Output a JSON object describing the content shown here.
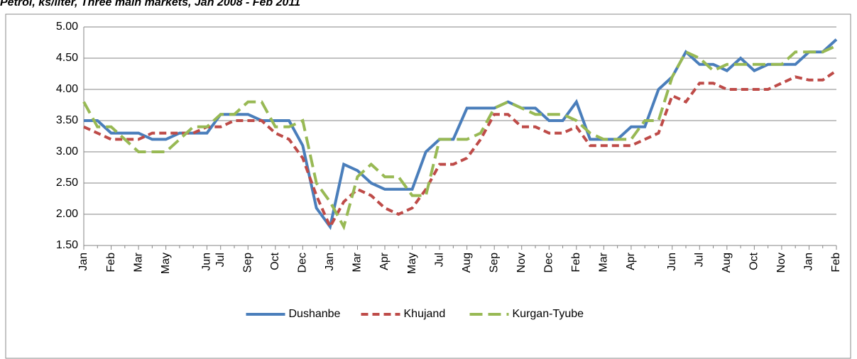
{
  "chart_data": {
    "type": "line",
    "title": "Petrol, ks/liter, Three main markets, Jan 2008 - Feb 2011",
    "categories": [
      "Jan",
      null,
      "Feb",
      null,
      "Mar",
      null,
      "May",
      null,
      null,
      "Jun",
      "Jul",
      null,
      "Sep",
      null,
      "Oct",
      null,
      "Dec",
      null,
      "Jan",
      null,
      "Mar",
      null,
      "Apr",
      null,
      "May",
      null,
      "Jul",
      null,
      "Aug",
      null,
      "Sep",
      null,
      "Nov",
      null,
      "Dec",
      null,
      "Feb",
      null,
      "Mar",
      null,
      "Apr",
      null,
      null,
      "Jun",
      null,
      "Jul",
      null,
      "Aug",
      null,
      "Oct",
      null,
      "Nov",
      null,
      "Jan",
      null,
      "Feb"
    ],
    "series": [
      {
        "name": "Dushanbe",
        "color": "#4a7ebb",
        "line_style": "solid",
        "values": [
          3.5,
          3.5,
          3.3,
          3.3,
          3.3,
          3.2,
          3.2,
          3.3,
          3.3,
          3.3,
          3.6,
          3.6,
          3.6,
          3.5,
          3.5,
          3.5,
          3.1,
          2.1,
          1.8,
          2.8,
          2.7,
          2.5,
          2.4,
          2.4,
          2.4,
          3.0,
          3.2,
          3.2,
          3.7,
          3.7,
          3.7,
          3.8,
          3.7,
          3.7,
          3.5,
          3.5,
          3.8,
          3.2,
          3.2,
          3.2,
          3.4,
          3.4,
          4.0,
          4.2,
          4.6,
          4.4,
          4.4,
          4.3,
          4.5,
          4.3,
          4.4,
          4.4,
          4.4,
          4.6,
          4.6,
          4.8
        ]
      },
      {
        "name": "Khujand",
        "color": "#be4b48",
        "line_style": "dashed",
        "values": [
          3.4,
          3.3,
          3.2,
          3.2,
          3.2,
          3.3,
          3.3,
          3.3,
          3.3,
          3.4,
          3.4,
          3.5,
          3.5,
          3.5,
          3.3,
          3.2,
          2.9,
          2.3,
          1.8,
          2.2,
          2.4,
          2.3,
          2.1,
          2.0,
          2.1,
          2.4,
          2.8,
          2.8,
          2.9,
          3.2,
          3.6,
          3.6,
          3.4,
          3.4,
          3.3,
          3.3,
          3.4,
          3.1,
          3.1,
          3.1,
          3.1,
          3.2,
          3.3,
          3.9,
          3.8,
          4.1,
          4.1,
          4.0,
          4.0,
          4.0,
          4.0,
          4.1,
          4.2,
          4.15,
          4.15,
          4.3
        ]
      },
      {
        "name": "Kurgan-Tyube",
        "color": "#98b954",
        "line_style": "longdash",
        "values": [
          3.8,
          3.4,
          3.4,
          3.2,
          3.0,
          3.0,
          3.0,
          3.2,
          3.4,
          3.4,
          3.6,
          3.6,
          3.8,
          3.8,
          3.4,
          3.4,
          3.5,
          2.5,
          2.2,
          1.8,
          2.6,
          2.8,
          2.6,
          2.6,
          2.3,
          2.3,
          3.2,
          3.2,
          3.2,
          3.3,
          3.7,
          3.8,
          3.7,
          3.6,
          3.6,
          3.6,
          3.5,
          3.3,
          3.2,
          3.2,
          3.2,
          3.5,
          3.5,
          4.2,
          4.6,
          4.5,
          4.3,
          4.4,
          4.4,
          4.4,
          4.4,
          4.4,
          4.6,
          4.6,
          4.6,
          4.7
        ]
      }
    ],
    "ylim": [
      1.5,
      5.0
    ],
    "yticks": [
      {
        "value": 1.5,
        "label": "1.50"
      },
      {
        "value": 2.0,
        "label": "2.00"
      },
      {
        "value": 2.5,
        "label": "2.50"
      },
      {
        "value": 3.0,
        "label": "3.00"
      },
      {
        "value": 3.5,
        "label": "3.50"
      },
      {
        "value": 4.0,
        "label": "4.00"
      },
      {
        "value": 4.5,
        "label": "4.50"
      },
      {
        "value": 5.0,
        "label": "5.00"
      }
    ],
    "grid": true,
    "legend": "bottom"
  }
}
